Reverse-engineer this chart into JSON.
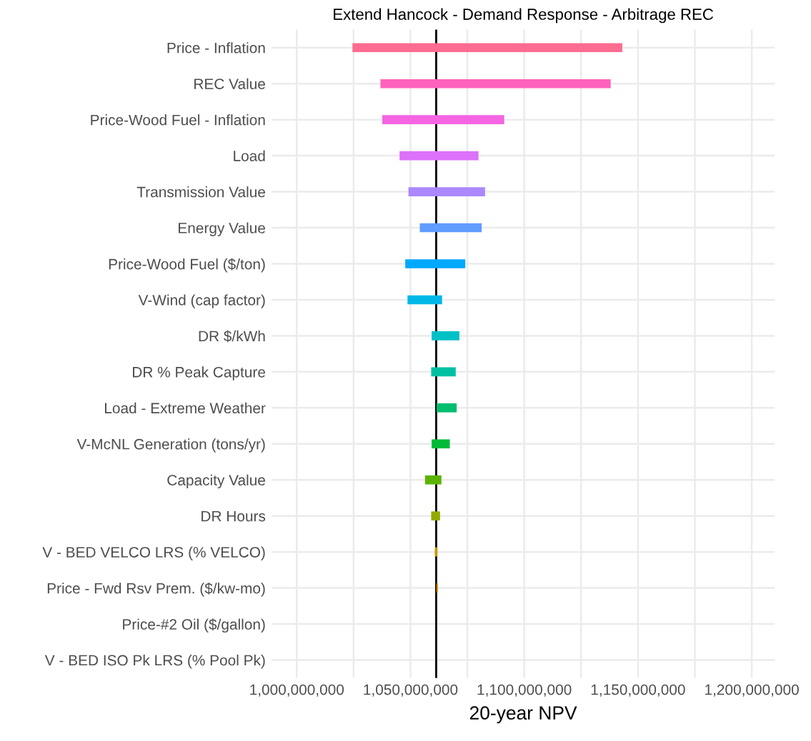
{
  "chart_data": {
    "type": "bar",
    "orientation": "horizontal",
    "title": "Extend Hancock - Demand Response - Arbitrage REC",
    "xlabel": "20-year NPV",
    "categories": [
      "Price - Inflation",
      "REC Value",
      "Price-Wood Fuel - Inflation",
      "Load",
      "Transmission Value",
      "Energy Value",
      "Price-Wood Fuel ($/ton)",
      "V-Wind (cap factor)",
      "DR $/kWh",
      "DR % Peak Capture",
      "Load - Extreme Weather",
      "V-McNL Generation (tons/yr)",
      "Capacity Value",
      "DR Hours",
      "V - BED VELCO LRS (% VELCO)",
      "Price - Fwd Rsv Prem. ($/kw-mo)",
      "Price-#2 Oil ($/gallon)",
      "V - BED ISO Pk LRS (% Pool Pk)"
    ],
    "base": [
      1024500000,
      1036800000,
      1037600000,
      1045200000,
      1049100000,
      1054100000,
      1047700000,
      1048700000,
      1059300000,
      1059100000,
      1061500000,
      1059300000,
      1056400000,
      1059100000,
      1060700000,
      1061400000,
      null,
      null
    ],
    "values": [
      118600000,
      101200000,
      53600000,
      34700000,
      33700000,
      27200000,
      26400000,
      15200000,
      12200000,
      10800000,
      8800000,
      8000000,
      7200000,
      3900000,
      1200000,
      700000,
      null,
      null
    ],
    "colors": [
      "#ff6c91",
      "#ff62bc",
      "#f564e3",
      "#dc71fa",
      "#ac88ff",
      "#619cff",
      "#00a9ff",
      "#00b8e7",
      "#00c1c6",
      "#00c0a3",
      "#00be70",
      "#00ba38",
      "#5bb300",
      "#93aa00",
      "#c49a00",
      "#db8e00",
      "#e7861b",
      "#f8766d"
    ],
    "xlim": [
      989000000,
      1210000000
    ],
    "xticks": [
      {
        "value": 1000000000,
        "label": "1,000,000,000"
      },
      {
        "value": 1025000000,
        "label": null
      },
      {
        "value": 1050000000,
        "label": "1,050,000,000"
      },
      {
        "value": 1075000000,
        "label": null
      },
      {
        "value": 1100000000,
        "label": "1,100,000,000"
      },
      {
        "value": 1125000000,
        "label": null
      },
      {
        "value": 1150000000,
        "label": "1,150,000,000"
      },
      {
        "value": 1175000000,
        "label": null
      },
      {
        "value": 1200000000,
        "label": "1,200,000,000"
      }
    ],
    "ref_lines": [
      {
        "axis": "x",
        "value": 1061300000,
        "color": "#000000"
      }
    ],
    "grid": true,
    "legend": false
  }
}
